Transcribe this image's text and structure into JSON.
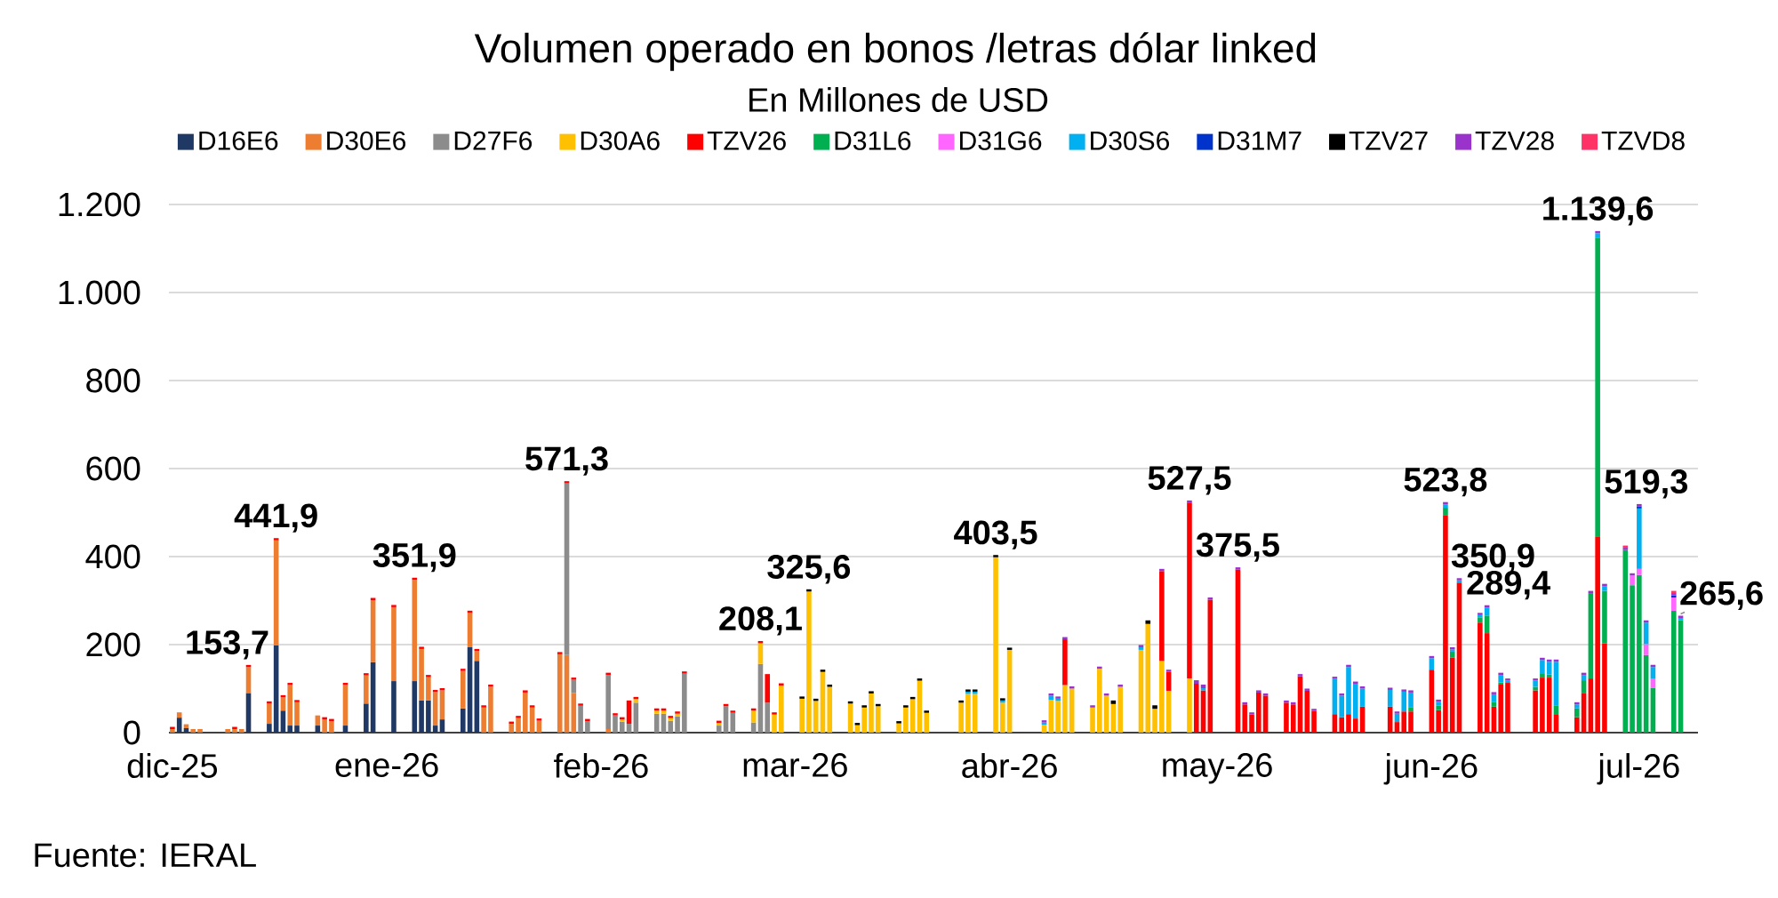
{
  "chart_data": {
    "type": "bar",
    "stacked": true,
    "title": "Volumen operado en bonos /letras dólar linked",
    "subtitle": "En Millones de USD",
    "annotations": [
      "Fuente: IERAL"
    ],
    "x": [
      "2025-12-01",
      "2025-12-02",
      "2025-12-03",
      "2025-12-04",
      "2025-12-05",
      "2025-12-09",
      "2025-12-10",
      "2025-12-11",
      "2025-12-12",
      "2025-12-15",
      "2025-12-16",
      "2025-12-17",
      "2025-12-18",
      "2025-12-19",
      "2025-12-22",
      "2025-12-23",
      "2025-12-24",
      "2025-12-26",
      "2025-12-29",
      "2025-12-30",
      "2026-01-02",
      "2026-01-05",
      "2026-01-06",
      "2026-01-07",
      "2026-01-08",
      "2026-01-09",
      "2026-01-12",
      "2026-01-13",
      "2026-01-14",
      "2026-01-15",
      "2026-01-16",
      "2026-01-19",
      "2026-01-20",
      "2026-01-21",
      "2026-01-22",
      "2026-01-23",
      "2026-01-26",
      "2026-01-27",
      "2026-01-28",
      "2026-01-29",
      "2026-01-30",
      "2026-02-02",
      "2026-02-03",
      "2026-02-04",
      "2026-02-05",
      "2026-02-06",
      "2026-02-09",
      "2026-02-10",
      "2026-02-11",
      "2026-02-12",
      "2026-02-13",
      "2026-02-18",
      "2026-02-19",
      "2026-02-20",
      "2026-02-23",
      "2026-02-24",
      "2026-02-25",
      "2026-02-26",
      "2026-02-27",
      "2026-03-02",
      "2026-03-03",
      "2026-03-04",
      "2026-03-05",
      "2026-03-06",
      "2026-03-09",
      "2026-03-10",
      "2026-03-11",
      "2026-03-12",
      "2026-03-13",
      "2026-03-16",
      "2026-03-17",
      "2026-03-18",
      "2026-03-19",
      "2026-03-20",
      "2026-03-25",
      "2026-03-26",
      "2026-03-27",
      "2026-03-30",
      "2026-03-31",
      "2026-04-01",
      "2026-04-06",
      "2026-04-07",
      "2026-04-08",
      "2026-04-09",
      "2026-04-10",
      "2026-04-13",
      "2026-04-14",
      "2026-04-15",
      "2026-04-16",
      "2026-04-17",
      "2026-04-20",
      "2026-04-21",
      "2026-04-22",
      "2026-04-23",
      "2026-04-24",
      "2026-04-27",
      "2026-04-28",
      "2026-04-29",
      "2026-04-30",
      "2026-05-04",
      "2026-05-05",
      "2026-05-06",
      "2026-05-07",
      "2026-05-08",
      "2026-05-11",
      "2026-05-12",
      "2026-05-13",
      "2026-05-14",
      "2026-05-15",
      "2026-05-18",
      "2026-05-19",
      "2026-05-20",
      "2026-05-21",
      "2026-05-22",
      "2026-05-26",
      "2026-05-27",
      "2026-05-28",
      "2026-05-29",
      "2026-06-01",
      "2026-06-02",
      "2026-06-03",
      "2026-06-04",
      "2026-06-05",
      "2026-06-08",
      "2026-06-09",
      "2026-06-10",
      "2026-06-11",
      "2026-06-12",
      "2026-06-16",
      "2026-06-17",
      "2026-06-18",
      "2026-06-19",
      "2026-06-22",
      "2026-06-23",
      "2026-06-24",
      "2026-06-25",
      "2026-06-26",
      "2026-06-29",
      "2026-06-30",
      "2026-07-01",
      "2026-07-02",
      "2026-07-03",
      "2026-07-06",
      "2026-07-07"
    ],
    "series": [
      {
        "name": "D16E6",
        "color": "#1f3864",
        "values": [
          null,
          34,
          10,
          null,
          null,
          null,
          null,
          null,
          90,
          20,
          198,
          50,
          16,
          16,
          16,
          null,
          null,
          16,
          66,
          160,
          117,
          117,
          73,
          73,
          16,
          30,
          55,
          194,
          163,
          null,
          null,
          null,
          null,
          null,
          null,
          null,
          null,
          null,
          null,
          null,
          null,
          null,
          null,
          null,
          null,
          null,
          null,
          null,
          null,
          null,
          null,
          null,
          null,
          null,
          null,
          null,
          null,
          null,
          null,
          null,
          null,
          null,
          null,
          null,
          null,
          null,
          null,
          null,
          null,
          null,
          null,
          null,
          null,
          null,
          null,
          null,
          null,
          null,
          null,
          null,
          null,
          null,
          null,
          null,
          null,
          null,
          null,
          null,
          null,
          null,
          null,
          null,
          null,
          null,
          null,
          null,
          null,
          null,
          null,
          null,
          null,
          null,
          null,
          null,
          null,
          null,
          null,
          null,
          null,
          null,
          null,
          null,
          null,
          null,
          null,
          null,
          null,
          null,
          null,
          null,
          null,
          null,
          null,
          null,
          null,
          null,
          null,
          null,
          null,
          null,
          null,
          null,
          null,
          null,
          null,
          null,
          null,
          null,
          null,
          null,
          null,
          null,
          null,
          null
        ]
      },
      {
        "name": "D30E6",
        "color": "#ed7d31",
        "values": [
          8,
          12,
          9,
          8,
          8,
          8,
          8,
          8,
          58.7,
          46,
          238.9,
          30,
          92,
          53,
          23,
          30,
          26,
          92,
          64,
          141,
          168,
          229.9,
          117,
          53,
          76,
          66,
          85,
          78,
          22,
          57,
          104,
          20,
          33,
          91,
          57,
          27,
          178,
          176,
          90,
          null,
          null,
          8,
          null,
          null,
          null,
          null,
          null,
          null,
          null,
          null,
          null,
          null,
          null,
          null,
          null,
          null,
          null,
          null,
          null,
          null,
          null,
          null,
          null,
          null,
          null,
          null,
          null,
          null,
          null,
          null,
          null,
          null,
          null,
          null,
          null,
          null,
          null,
          null,
          null,
          null,
          null,
          null,
          null,
          null,
          null,
          null,
          null,
          null,
          null,
          null,
          null,
          null,
          null,
          null,
          null,
          null,
          null,
          null,
          null,
          null,
          null,
          null,
          null,
          null,
          null,
          null,
          null,
          null,
          null,
          null,
          null,
          null,
          null,
          null,
          null,
          null,
          null,
          null,
          null,
          null,
          null,
          null,
          null,
          null,
          null,
          null,
          null,
          null,
          null,
          null,
          null,
          null,
          null,
          null,
          null,
          null,
          null,
          null,
          null,
          null,
          null,
          null,
          null,
          null
        ]
      },
      {
        "name": "D27F6",
        "color": "#8c8c8c",
        "values": [
          null,
          null,
          null,
          null,
          null,
          null,
          null,
          null,
          null,
          null,
          null,
          null,
          null,
          null,
          null,
          null,
          null,
          null,
          null,
          null,
          null,
          null,
          null,
          null,
          null,
          null,
          null,
          null,
          null,
          null,
          null,
          null,
          null,
          null,
          null,
          null,
          null,
          390.3,
          30,
          61,
          26,
          123,
          39,
          25,
          20,
          68,
          43,
          43,
          27,
          37,
          134,
          16,
          60,
          45,
          23,
          156,
          68,
          null,
          null,
          null,
          null,
          null,
          null,
          null,
          null,
          null,
          null,
          null,
          null,
          null,
          null,
          null,
          null,
          null,
          null,
          null,
          null,
          null,
          null,
          null,
          null,
          null,
          null,
          null,
          null,
          null,
          null,
          null,
          null,
          null,
          null,
          null,
          null,
          null,
          null,
          null,
          null,
          null,
          null,
          null,
          null,
          null,
          null,
          null,
          null,
          null,
          null,
          null,
          null,
          null,
          null,
          null,
          null,
          null,
          null,
          null,
          null,
          null,
          null,
          null,
          null,
          null,
          null,
          null,
          null,
          null,
          null,
          null,
          null,
          null,
          null,
          null,
          null,
          null,
          null,
          null,
          null,
          null,
          null,
          null,
          null,
          null,
          null,
          null
        ]
      },
      {
        "name": "D30A6",
        "color": "#ffc000",
        "values": [
          null,
          null,
          null,
          null,
          null,
          null,
          null,
          null,
          null,
          null,
          null,
          null,
          null,
          null,
          null,
          null,
          null,
          null,
          null,
          null,
          null,
          null,
          null,
          null,
          null,
          null,
          null,
          null,
          null,
          null,
          null,
          null,
          null,
          null,
          null,
          null,
          null,
          null,
          null,
          null,
          null,
          null,
          null,
          5,
          null,
          8,
          7,
          7,
          6,
          6,
          null,
          6,
          null,
          null,
          27,
          47.1,
          null,
          41,
          107,
          77,
          320.6,
          72,
          138,
          104,
          66,
          17,
          57,
          89,
          60,
          21,
          57,
          76,
          118,
          45,
          68,
          88,
          88,
          398.5,
          68,
          188,
          18,
          74,
          72,
          108,
          100,
          57,
          145,
          84,
          65,
          104,
          188,
          247,
          54,
          163,
          95,
          123,
          null,
          null,
          null,
          null,
          null,
          null,
          null,
          null,
          null,
          null,
          null,
          null,
          null,
          null,
          null,
          null,
          null,
          null,
          null,
          null,
          null,
          null,
          null,
          null,
          null,
          null,
          null,
          null,
          null,
          null,
          null,
          null,
          null,
          null,
          null,
          null,
          null,
          null,
          null,
          null,
          null,
          null,
          null,
          null,
          null,
          null,
          null,
          null
        ]
      },
      {
        "name": "TZV26",
        "color": "#ff0000",
        "values": [
          5,
          null,
          null,
          null,
          null,
          null,
          5,
          null,
          5,
          5,
          5,
          5,
          5,
          5,
          null,
          5,
          5,
          5,
          5,
          5,
          5,
          5,
          5,
          5,
          5,
          5,
          5,
          5,
          5,
          5,
          5,
          5,
          5,
          5,
          5,
          5,
          5,
          5,
          5,
          5,
          5,
          5,
          5,
          5,
          53,
          5,
          5,
          5,
          5,
          5,
          5,
          5,
          5,
          5,
          5,
          5,
          65,
          5,
          5,
          null,
          null,
          null,
          null,
          null,
          null,
          null,
          null,
          null,
          null,
          null,
          null,
          null,
          null,
          null,
          null,
          null,
          null,
          null,
          null,
          null,
          null,
          null,
          null,
          104,
          null,
          null,
          null,
          null,
          null,
          null,
          null,
          null,
          null,
          204,
          43,
          399.5,
          111,
          96,
          302,
          370.5,
          64,
          41,
          91,
          84,
          68,
          64,
          128,
          95,
          49,
          42,
          35,
          42,
          32,
          59,
          59,
          24,
          48,
          48,
          143,
          51,
          493,
          170,
          340.9,
          250,
          226,
          59,
          109,
          113,
          96,
          125,
          125,
          42,
          35,
          89,
          123,
          446,
          203,
          null,
          null,
          null,
          null,
          null,
          null,
          null
        ]
      },
      {
        "name": "D31L6",
        "color": "#00b050",
        "values": [
          null,
          null,
          null,
          null,
          null,
          null,
          null,
          null,
          null,
          null,
          null,
          null,
          null,
          null,
          null,
          null,
          null,
          null,
          null,
          null,
          null,
          null,
          null,
          null,
          null,
          null,
          null,
          null,
          null,
          null,
          null,
          null,
          null,
          null,
          null,
          null,
          null,
          null,
          null,
          null,
          null,
          null,
          null,
          null,
          null,
          null,
          null,
          null,
          null,
          null,
          null,
          null,
          null,
          null,
          null,
          null,
          null,
          null,
          null,
          null,
          null,
          null,
          null,
          null,
          null,
          null,
          null,
          null,
          null,
          null,
          null,
          null,
          null,
          null,
          null,
          null,
          null,
          null,
          null,
          null,
          null,
          null,
          null,
          null,
          null,
          null,
          null,
          null,
          null,
          null,
          null,
          null,
          null,
          null,
          null,
          null,
          null,
          null,
          null,
          null,
          null,
          null,
          null,
          null,
          null,
          null,
          null,
          null,
          null,
          null,
          null,
          null,
          null,
          null,
          null,
          null,
          null,
          10,
          null,
          10,
          18,
          14,
          null,
          12,
          40,
          10,
          5,
          null,
          8,
          10,
          7,
          20,
          20,
          30,
          194,
          678.6,
          119,
          415,
          335,
          358,
          176,
          102,
          277,
          255.6
        ]
      },
      {
        "name": "D31G6",
        "color": "#ff66ff",
        "values": [
          null,
          null,
          null,
          null,
          null,
          null,
          null,
          null,
          null,
          null,
          null,
          null,
          null,
          null,
          null,
          null,
          null,
          null,
          null,
          null,
          null,
          null,
          null,
          null,
          null,
          null,
          null,
          null,
          null,
          null,
          null,
          null,
          null,
          null,
          null,
          null,
          null,
          null,
          null,
          null,
          null,
          null,
          null,
          null,
          null,
          null,
          null,
          null,
          null,
          null,
          null,
          null,
          null,
          null,
          null,
          null,
          null,
          null,
          null,
          null,
          null,
          null,
          null,
          null,
          null,
          null,
          null,
          null,
          null,
          null,
          null,
          null,
          null,
          null,
          null,
          null,
          null,
          null,
          null,
          null,
          null,
          null,
          null,
          null,
          null,
          null,
          null,
          null,
          null,
          null,
          null,
          null,
          null,
          null,
          null,
          null,
          null,
          null,
          null,
          null,
          null,
          null,
          null,
          null,
          null,
          null,
          null,
          null,
          null,
          null,
          null,
          null,
          null,
          null,
          null,
          null,
          null,
          null,
          null,
          null,
          null,
          null,
          null,
          null,
          null,
          null,
          null,
          null,
          null,
          null,
          null,
          null,
          null,
          null,
          null,
          null,
          null,
          null,
          22,
          14,
          25,
          20,
          30,
          null
        ]
      },
      {
        "name": "D30S6",
        "color": "#00b0f0",
        "values": [
          null,
          null,
          null,
          null,
          null,
          null,
          null,
          null,
          null,
          null,
          null,
          null,
          null,
          null,
          null,
          null,
          null,
          null,
          null,
          null,
          null,
          null,
          null,
          null,
          null,
          null,
          null,
          null,
          null,
          null,
          null,
          null,
          null,
          null,
          null,
          null,
          null,
          null,
          null,
          null,
          null,
          null,
          null,
          null,
          null,
          null,
          null,
          null,
          null,
          null,
          null,
          null,
          null,
          null,
          null,
          null,
          null,
          null,
          null,
          null,
          null,
          null,
          null,
          null,
          null,
          null,
          null,
          null,
          null,
          null,
          null,
          null,
          null,
          null,
          null,
          5,
          5,
          null,
          5,
          null,
          5,
          10,
          5,
          null,
          null,
          null,
          null,
          null,
          null,
          null,
          6,
          null,
          null,
          null,
          null,
          null,
          null,
          5,
          null,
          null,
          null,
          null,
          null,
          null,
          null,
          null,
          null,
          null,
          null,
          80,
          49,
          107,
          79,
          41,
          38,
          19,
          45,
          33,
          26,
          9,
          7.8,
          5,
          5,
          5,
          18.4,
          18,
          17,
          5,
          14,
          30,
          29,
          99,
          9,
          12,
          null,
          10,
          11,
          null,
          null,
          137.3,
          49,
          27,
          null,
          5
        ]
      },
      {
        "name": "D31M7",
        "color": "#0033cc",
        "values": [
          null,
          null,
          null,
          null,
          null,
          null,
          null,
          null,
          null,
          null,
          null,
          null,
          null,
          null,
          null,
          null,
          null,
          null,
          null,
          null,
          null,
          null,
          null,
          null,
          null,
          null,
          null,
          null,
          null,
          null,
          null,
          null,
          null,
          null,
          null,
          null,
          null,
          null,
          null,
          null,
          null,
          null,
          null,
          null,
          null,
          null,
          null,
          null,
          null,
          null,
          null,
          null,
          null,
          null,
          null,
          null,
          null,
          null,
          null,
          null,
          null,
          null,
          null,
          null,
          null,
          null,
          null,
          null,
          null,
          null,
          null,
          null,
          null,
          null,
          null,
          null,
          null,
          null,
          null,
          null,
          null,
          null,
          null,
          null,
          null,
          null,
          null,
          null,
          null,
          null,
          null,
          null,
          null,
          null,
          null,
          null,
          null,
          null,
          null,
          null,
          null,
          null,
          null,
          null,
          null,
          null,
          null,
          null,
          null,
          null,
          null,
          null,
          null,
          null,
          null,
          null,
          null,
          null,
          null,
          null,
          null,
          null,
          null,
          null,
          null,
          null,
          null,
          null,
          null,
          null,
          null,
          null,
          null,
          null,
          null,
          null,
          null,
          null,
          null,
          5,
          null,
          null,
          5,
          null
        ]
      },
      {
        "name": "TZV27",
        "color": "#000000",
        "values": [
          null,
          null,
          null,
          null,
          null,
          null,
          null,
          null,
          null,
          null,
          null,
          null,
          null,
          null,
          null,
          null,
          null,
          null,
          null,
          null,
          null,
          null,
          null,
          null,
          null,
          null,
          null,
          null,
          null,
          null,
          null,
          null,
          null,
          null,
          null,
          null,
          null,
          null,
          null,
          null,
          null,
          null,
          null,
          null,
          null,
          null,
          null,
          null,
          null,
          null,
          null,
          null,
          null,
          null,
          null,
          null,
          null,
          null,
          null,
          5,
          5,
          5,
          5,
          5,
          5,
          5,
          5,
          5,
          5,
          5,
          5,
          5,
          5,
          5,
          5,
          5,
          5,
          5,
          5,
          5,
          null,
          null,
          null,
          null,
          null,
          null,
          null,
          null,
          8,
          null,
          null,
          8,
          8,
          null,
          null,
          null,
          null,
          null,
          null,
          null,
          null,
          null,
          null,
          null,
          null,
          null,
          null,
          null,
          null,
          null,
          null,
          null,
          null,
          null,
          null,
          null,
          null,
          null,
          null,
          null,
          null,
          null,
          null,
          null,
          null,
          null,
          null,
          null,
          null,
          null,
          null,
          null,
          null,
          null,
          null,
          null,
          null,
          null,
          null,
          null,
          null,
          null,
          null,
          null
        ]
      },
      {
        "name": "TZV28",
        "color": "#9933cc",
        "values": [
          null,
          null,
          null,
          null,
          null,
          null,
          null,
          null,
          null,
          null,
          null,
          null,
          null,
          null,
          null,
          null,
          null,
          null,
          null,
          null,
          null,
          null,
          null,
          null,
          null,
          null,
          null,
          null,
          null,
          null,
          null,
          null,
          null,
          null,
          null,
          null,
          null,
          null,
          null,
          null,
          null,
          null,
          null,
          null,
          null,
          null,
          null,
          null,
          null,
          null,
          null,
          null,
          null,
          null,
          null,
          null,
          null,
          null,
          null,
          null,
          null,
          null,
          null,
          null,
          null,
          null,
          null,
          null,
          null,
          null,
          null,
          null,
          null,
          null,
          null,
          null,
          null,
          null,
          null,
          null,
          5,
          5,
          5,
          5,
          5,
          5,
          5,
          5,
          null,
          5,
          5,
          null,
          null,
          5,
          5,
          5,
          8,
          8,
          5,
          5,
          5,
          5,
          5,
          5,
          5,
          5,
          5,
          5,
          5,
          5,
          5,
          5,
          5,
          5,
          5,
          5,
          5,
          5,
          5,
          5,
          5,
          5,
          5,
          5,
          5,
          5,
          5,
          5,
          5,
          5,
          5,
          5,
          5,
          5,
          5,
          5,
          5,
          5,
          5,
          5,
          5,
          5,
          5,
          5
        ]
      },
      {
        "name": "TZVD8",
        "color": "#ff3366",
        "values": [
          null,
          null,
          null,
          null,
          null,
          null,
          null,
          null,
          null,
          null,
          null,
          null,
          null,
          null,
          null,
          null,
          null,
          null,
          null,
          null,
          null,
          null,
          null,
          null,
          null,
          null,
          null,
          null,
          null,
          null,
          null,
          null,
          null,
          null,
          null,
          null,
          null,
          null,
          null,
          null,
          null,
          null,
          null,
          null,
          null,
          null,
          null,
          null,
          null,
          null,
          null,
          null,
          null,
          null,
          null,
          null,
          null,
          null,
          null,
          null,
          null,
          null,
          null,
          null,
          null,
          null,
          null,
          null,
          null,
          null,
          null,
          null,
          null,
          null,
          null,
          null,
          null,
          null,
          null,
          null,
          null,
          null,
          null,
          null,
          null,
          null,
          null,
          null,
          null,
          null,
          null,
          null,
          null,
          null,
          null,
          null,
          null,
          null,
          null,
          null,
          null,
          null,
          null,
          null,
          null,
          null,
          null,
          null,
          null,
          null,
          null,
          null,
          null,
          null,
          null,
          null,
          null,
          null,
          null,
          null,
          null,
          null,
          null,
          null,
          null,
          null,
          null,
          null,
          null,
          null,
          null,
          null,
          null,
          null,
          null,
          null,
          null,
          5,
          null,
          null,
          null,
          null,
          5,
          null
        ]
      }
    ],
    "totals": [
      null,
      null,
      null,
      null,
      null,
      null,
      null,
      null,
      "153,7",
      null,
      "441,9",
      null,
      null,
      null,
      null,
      null,
      null,
      null,
      null,
      null,
      null,
      "351,9",
      null,
      null,
      null,
      null,
      null,
      null,
      null,
      null,
      null,
      null,
      null,
      null,
      null,
      null,
      null,
      "571,3",
      null,
      null,
      null,
      null,
      null,
      null,
      null,
      null,
      null,
      null,
      null,
      null,
      null,
      null,
      null,
      null,
      null,
      "208,1",
      null,
      null,
      null,
      null,
      "325,6",
      null,
      null,
      null,
      null,
      null,
      null,
      null,
      null,
      null,
      null,
      null,
      null,
      null,
      null,
      null,
      null,
      "403,5",
      null,
      null,
      null,
      null,
      null,
      null,
      null,
      null,
      null,
      null,
      null,
      null,
      null,
      null,
      null,
      null,
      null,
      "527,5",
      null,
      null,
      null,
      "375,5",
      null,
      null,
      null,
      null,
      null,
      null,
      null,
      null,
      null,
      null,
      null,
      null,
      null,
      null,
      null,
      null,
      null,
      null,
      null,
      null,
      "523,8",
      null,
      "350,9",
      null,
      "289,4",
      null,
      null,
      null,
      null,
      null,
      null,
      null,
      null,
      null,
      null,
      "1.139,6",
      null,
      null,
      null,
      "519,3",
      null,
      null,
      null,
      "265,6"
    ],
    "xlim": [
      "2025-11-30T12:00",
      "2026-07-09T12:00"
    ],
    "xticks": [
      {
        "value": "2025-12-01",
        "label": "dic-25"
      },
      {
        "value": "2026-01-01",
        "label": "ene-26"
      },
      {
        "value": "2026-02-01",
        "label": "feb-26"
      },
      {
        "value": "2026-03-01",
        "label": "mar-26"
      },
      {
        "value": "2026-04-01",
        "label": "abr-26"
      },
      {
        "value": "2026-05-01",
        "label": "may-26"
      },
      {
        "value": "2026-06-01",
        "label": "jun-26"
      },
      {
        "value": "2026-07-01",
        "label": "jul-26"
      }
    ],
    "ylim": [
      0,
      1200
    ],
    "yticks": [
      0,
      200,
      400,
      600,
      800,
      {
        "value": 1000,
        "label": "1.000"
      },
      {
        "value": 1200,
        "label": "1.200"
      }
    ],
    "grid": "y",
    "legend": "top"
  }
}
